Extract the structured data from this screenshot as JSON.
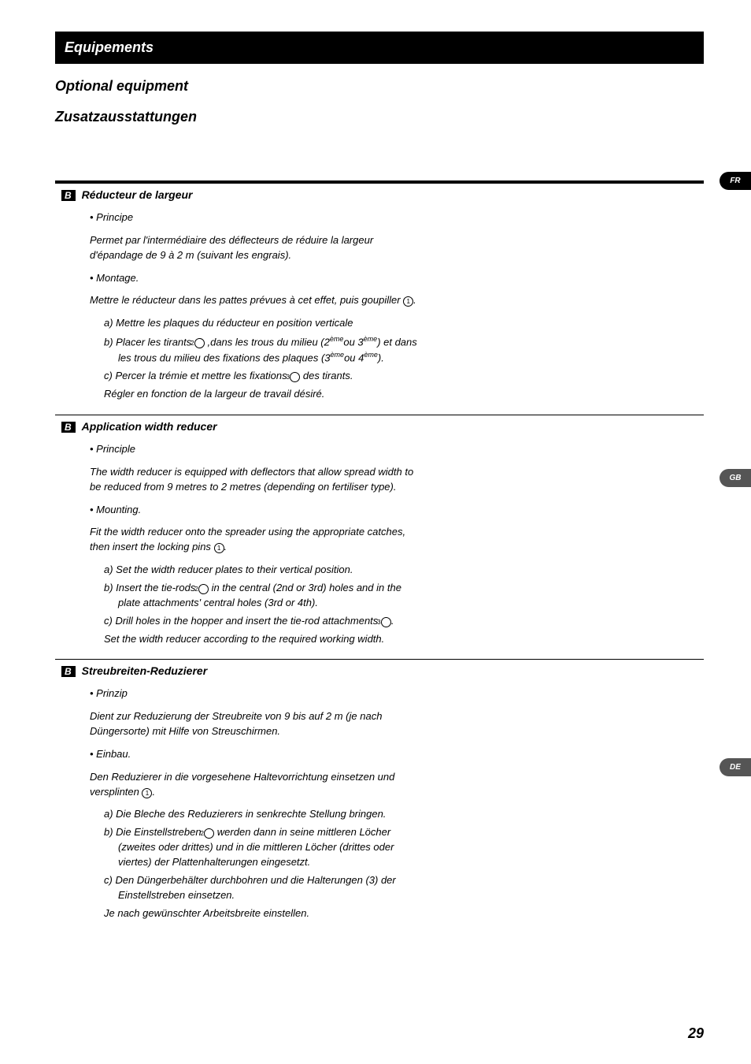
{
  "header": {
    "bar_title": "Equipements",
    "subtitle_bold": "Optional equipment",
    "subtitle_thin": "Zusatzausstattungen"
  },
  "tabs": {
    "fr": "FR",
    "gb": "GB",
    "de": "DE"
  },
  "page_number": "29",
  "sec_badge": "B",
  "fr": {
    "title": "Réducteur de largeur",
    "b1": "• Principe",
    "p1": "Permet par l'intermédiaire des déflecteurs de réduire la largeur d'épandage de 9 à 2 m (suivant les engrais).",
    "b2": "• Montage.",
    "p2a": "Mettre le réducteur dans les pattes prévues à cet effet, puis goupiller ",
    "p2b": ".",
    "la": "a) Mettre les plaques du réducteur en position verticale",
    "lb1": "b) Placer les tirants ",
    "lb2": " ,dans les trous du milieu (2",
    "lb3": "ou 3",
    "lb4": ") et dans les trous du milieu des fixations des plaques (3",
    "lb5": "ou 4",
    "lb6": ").",
    "lc1": "c) Percer la trémie et mettre les fixations ",
    "lc2": " des tirants.",
    "lend": "Régler en fonction de la largeur de travail désiré.",
    "ord": "ème"
  },
  "gb": {
    "title": "Application width reducer",
    "b1": "• Principle",
    "p1": "The width reducer is equipped with deflectors that allow spread width to be reduced from 9 metres to 2 metres (depending on fertiliser type).",
    "b2": "• Mounting.",
    "p2a": "Fit the width reducer onto the spreader using the appropriate catches, then insert the locking pins ",
    "p2b": ".",
    "la": "a) Set the width reducer plates to their vertical position.",
    "lb1": "b) Insert the tie-rods ",
    "lb2": " in the central (2nd or 3rd) holes and in the plate attachments' central holes (3rd or 4th).",
    "lc1": "c) Drill holes in the hopper and insert the tie-rod attachments ",
    "lc2": ".",
    "lend": "Set the width reducer according to the required working width."
  },
  "de": {
    "title": "Streubreiten-Reduzierer",
    "b1": "• Prinzip",
    "p1": "Dient zur Reduzierung der Streubreite von 9 bis auf 2 m (je nach Düngersorte) mit Hilfe von Streuschirmen.",
    "b2": "• Einbau.",
    "p2a": "Den Reduzierer in die vorgesehene Haltevorrichtung einsetzen und versplinten ",
    "p2b": ".",
    "la": "a) Die Bleche des Reduzierers in senkrechte Stellung bringen.",
    "lb1": "b) Die Einstellstreben ",
    "lb2": " werden dann in seine mittleren Löcher (zweites oder drittes) und in die mittleren Löcher (drittes oder viertes) der Plattenhalterungen eingesetzt.",
    "lc": "c) Den Düngerbehälter durchbohren und die Halterungen (3) der Einstellstreben einsetzen.",
    "lend": "Je nach gewünschter Arbeitsbreite einstellen."
  }
}
